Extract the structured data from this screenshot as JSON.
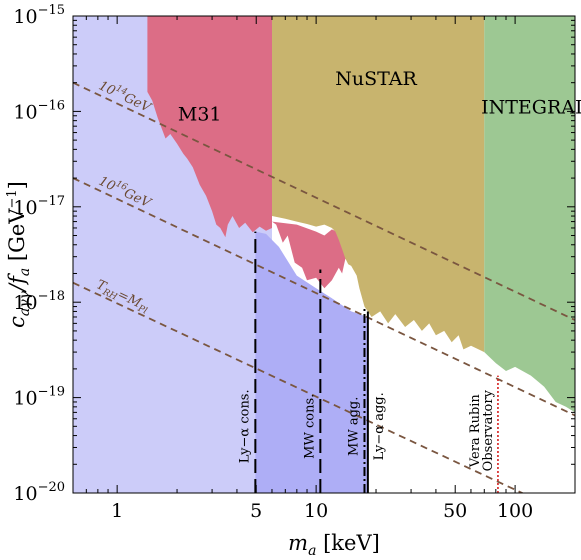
{
  "chart_data": {
    "type": "area",
    "x_scale": "log",
    "y_scale": "log",
    "xlim": [
      0.6,
      200
    ],
    "ylim": [
      1e-20,
      1e-15
    ],
    "xlabel": "m_a [keV]",
    "ylabel": "c_aγγ / f_a [GeV^-1]",
    "x_ticks": [
      {
        "value": 1,
        "label": "1"
      },
      {
        "value": 5,
        "label": "5"
      },
      {
        "value": 10,
        "label": "10"
      },
      {
        "value": 50,
        "label": "50"
      },
      {
        "value": 100,
        "label": "100"
      }
    ],
    "y_ticks": [
      {
        "value": 1e-20,
        "label": "10−20"
      },
      {
        "value": 1e-19,
        "label": "10−19"
      },
      {
        "value": 1e-18,
        "label": "10−18"
      },
      {
        "value": 1e-17,
        "label": "10−17"
      },
      {
        "value": 1e-16,
        "label": "10−16"
      },
      {
        "value": 1e-15,
        "label": "10−15"
      }
    ],
    "regions": [
      {
        "name": "light-lavender-background",
        "label": "",
        "color": "#ccccf9",
        "points": [
          [
            0.6,
            1e-20
          ],
          [
            6,
            1e-20
          ],
          [
            6,
            1e-15
          ],
          [
            0.6,
            1e-15
          ]
        ]
      },
      {
        "name": "ly-alpha-mw-band",
        "label": "",
        "color": "#aeaef6",
        "points": [
          [
            4.95,
            1e-20
          ],
          [
            18.2,
            1e-20
          ],
          [
            18.2,
            7e-19
          ],
          [
            15,
            8e-19
          ],
          [
            12,
            1.1e-18
          ],
          [
            10,
            1.4e-18
          ],
          [
            8,
            1.9e-18
          ],
          [
            6.5,
            3.8e-18
          ],
          [
            5.6,
            5.2e-18
          ],
          [
            4.95,
            5.5e-18
          ]
        ]
      },
      {
        "name": "m31",
        "label": "M31",
        "color": "#dc6d86",
        "points": [
          [
            1.42,
            1e-15
          ],
          [
            6,
            1e-15
          ],
          [
            6,
            6e-18
          ],
          [
            5.6,
            5.6e-18
          ],
          [
            5.2,
            6.2e-18
          ],
          [
            4.8,
            5.4e-18
          ],
          [
            4.4,
            6.8e-18
          ],
          [
            4.1,
            6e-18
          ],
          [
            3.8,
            8e-18
          ],
          [
            3.6,
            6.5e-18
          ],
          [
            3.5,
            4.8e-18
          ],
          [
            3.3,
            6e-18
          ],
          [
            3.15,
            6.5e-18
          ],
          [
            3.0,
            9e-18
          ],
          [
            2.8,
            1.3e-17
          ],
          [
            2.6,
            1.7e-17
          ],
          [
            2.4,
            2.6e-17
          ],
          [
            2.25,
            3.2e-17
          ],
          [
            2.15,
            3.6e-17
          ],
          [
            2.0,
            4.6e-17
          ],
          [
            1.85,
            5.8e-17
          ],
          [
            1.75,
            5.2e-17
          ],
          [
            1.6,
            8.5e-17
          ],
          [
            1.5,
            1.3e-16
          ],
          [
            1.42,
            1.6e-16
          ]
        ]
      },
      {
        "name": "m31-tail",
        "label": "",
        "color": "#dc6d86",
        "points": [
          [
            6,
            7e-18
          ],
          [
            6.3,
            6.5e-18
          ],
          [
            6.8,
            4.2e-18
          ],
          [
            7.2,
            5e-18
          ],
          [
            7.8,
            2.6e-18
          ],
          [
            8.5,
            2.3e-18
          ],
          [
            9,
            1.7e-18
          ],
          [
            10,
            1.8e-18
          ],
          [
            11,
            1.4e-18
          ],
          [
            12,
            1.7e-18
          ],
          [
            13,
            2.3e-18
          ],
          [
            13.5,
            2e-18
          ],
          [
            14,
            2.8e-18
          ],
          [
            14.5,
            3.5e-18
          ],
          [
            15,
            4.5e-18
          ],
          [
            14,
            5e-18
          ],
          [
            12,
            5.8e-18
          ],
          [
            11,
            5e-18
          ],
          [
            10,
            5.5e-18
          ],
          [
            8,
            6.5e-18
          ],
          [
            6,
            7e-18
          ]
        ]
      },
      {
        "name": "nustar",
        "label": "NuSTAR",
        "color": "#c8b46e",
        "points": [
          [
            6,
            1e-15
          ],
          [
            70,
            1e-15
          ],
          [
            70,
            3e-19
          ],
          [
            60,
            3.5e-19
          ],
          [
            55,
            3.2e-19
          ],
          [
            52,
            4.5e-19
          ],
          [
            48,
            3.8e-19
          ],
          [
            44,
            5e-19
          ],
          [
            40,
            4.5e-19
          ],
          [
            37,
            6e-19
          ],
          [
            34,
            5e-19
          ],
          [
            31,
            6.5e-19
          ],
          [
            28,
            5.5e-19
          ],
          [
            25,
            7.5e-19
          ],
          [
            23,
            6e-19
          ],
          [
            21,
            8e-19
          ],
          [
            19,
            7e-19
          ],
          [
            17.5,
            9e-19
          ],
          [
            16.5,
            1.4e-18
          ],
          [
            16,
            1.9e-18
          ],
          [
            15,
            2.4e-18
          ],
          [
            14.5,
            2.5e-18
          ],
          [
            14,
            2.9e-18
          ],
          [
            13.5,
            3.6e-18
          ],
          [
            13,
            4.5e-18
          ],
          [
            12.5,
            5.5e-18
          ],
          [
            12,
            6e-18
          ],
          [
            11,
            6.5e-18
          ],
          [
            10,
            6.2e-18
          ],
          [
            9,
            6.6e-18
          ],
          [
            8,
            7e-18
          ],
          [
            7,
            7.5e-18
          ],
          [
            6,
            8e-18
          ]
        ]
      },
      {
        "name": "integral",
        "label": "INTEGRAL",
        "color": "#9dc893",
        "points": [
          [
            70,
            1e-15
          ],
          [
            200,
            1e-15
          ],
          [
            200,
            7e-20
          ],
          [
            180,
            8e-20
          ],
          [
            160,
            9e-20
          ],
          [
            140,
            1.3e-19
          ],
          [
            120,
            1.7e-19
          ],
          [
            100,
            2.1e-19
          ],
          [
            90,
            1.9e-19
          ],
          [
            80,
            2.3e-19
          ],
          [
            70,
            3e-19
          ]
        ]
      }
    ],
    "dashed_lines": [
      {
        "name": "ten-14-gev",
        "label": "10^14 GeV",
        "color": "#7a5640",
        "points": [
          [
            0.6,
            2e-16
          ],
          [
            200,
            6.5e-19
          ]
        ]
      },
      {
        "name": "ten-16-gev",
        "label": "10^16 GeV",
        "color": "#7a5640",
        "points": [
          [
            0.6,
            2e-17
          ],
          [
            200,
            6.5e-20
          ]
        ]
      },
      {
        "name": "trh-mpl",
        "label": "T_RH = M_Pl",
        "color": "#7a5640",
        "points": [
          [
            0.6,
            1.6e-18
          ],
          [
            200,
            5.5e-21
          ]
        ]
      }
    ],
    "vertical_lines": [
      {
        "name": "ly-alpha-cons",
        "label": "Ly−α cons.",
        "x": 4.95,
        "y_top": 5.5e-18,
        "style": "long-dash",
        "color": "#000000"
      },
      {
        "name": "mw-cons",
        "label": "MW cons.",
        "x": 10.5,
        "y_top": 2.2e-18,
        "style": "long-dash",
        "color": "#000000"
      },
      {
        "name": "mw-agg",
        "label": "MW agg.",
        "x": 17.5,
        "y_top": 8.5e-19,
        "style": "dash-dot",
        "color": "#000000"
      },
      {
        "name": "ly-alpha-agg",
        "label": "Ly−α agg.",
        "x": 18.2,
        "y_top": 8e-19,
        "style": "solid",
        "color": "#000000"
      },
      {
        "name": "vera-rubin",
        "label": "Vera Rubin Observatory",
        "x": 82,
        "y_top": 1.7e-19,
        "style": "dotted",
        "color": "#d62020"
      }
    ]
  }
}
